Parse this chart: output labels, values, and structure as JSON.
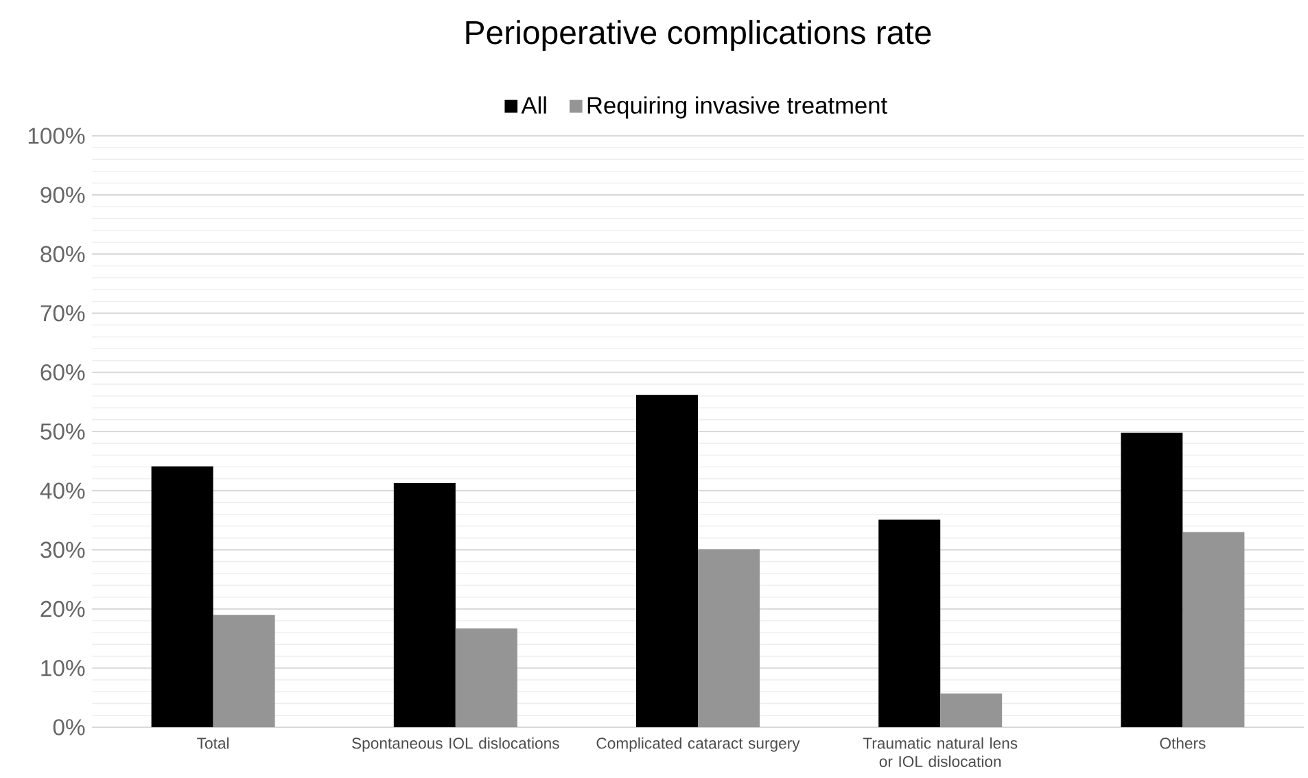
{
  "chart_data": {
    "type": "bar",
    "title": "Perioperative complications rate",
    "categories": [
      "Total",
      "Spontaneous IOL dislocations",
      "Complicated cataract surgery",
      "Traumatic natural lens or IOL dislocation",
      "Others"
    ],
    "series": [
      {
        "name": "All",
        "color": "#000000",
        "values": [
          44.1,
          41.3,
          56.2,
          35.1,
          49.8
        ]
      },
      {
        "name": "Requiring invasive treatment",
        "color": "#959595",
        "values": [
          19.0,
          16.7,
          30.1,
          5.7,
          33.0
        ]
      }
    ],
    "ylim": [
      0,
      100
    ],
    "yticks": [
      {
        "value": 0,
        "label": "0%"
      },
      {
        "value": 10,
        "label": "10%"
      },
      {
        "value": 20,
        "label": "20%"
      },
      {
        "value": 30,
        "label": "30%"
      },
      {
        "value": 40,
        "label": "40%"
      },
      {
        "value": 50,
        "label": "50%"
      },
      {
        "value": 60,
        "label": "60%"
      },
      {
        "value": 70,
        "label": "70%"
      },
      {
        "value": 80,
        "label": "80%"
      },
      {
        "value": 90,
        "label": "90%"
      },
      {
        "value": 100,
        "label": "100%"
      }
    ],
    "grid": "y",
    "legend": "top"
  }
}
